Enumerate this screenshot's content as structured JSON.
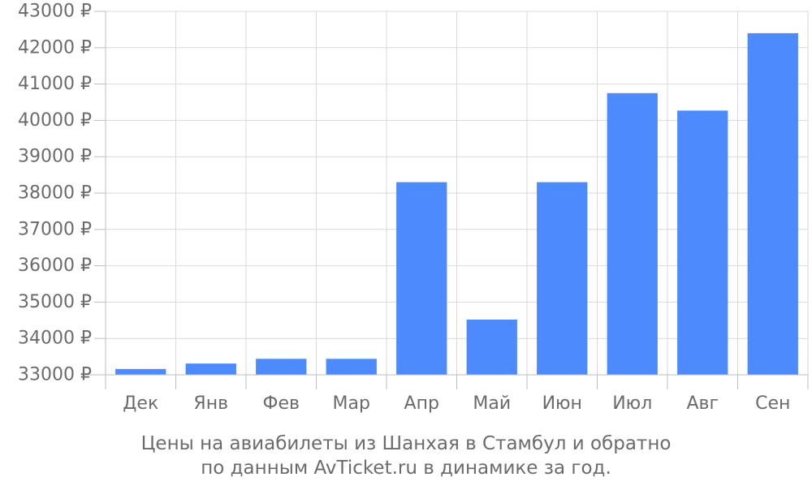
{
  "chart_data": {
    "type": "bar",
    "categories": [
      "Дек",
      "Янв",
      "Фев",
      "Мар",
      "Апр",
      "Май",
      "Июн",
      "Июл",
      "Авг",
      "Сен"
    ],
    "values": [
      33160,
      33310,
      33440,
      33440,
      38300,
      34520,
      38300,
      40750,
      40270,
      42400
    ],
    "ylim": [
      33000,
      43000
    ],
    "yticks": [
      33000,
      34000,
      35000,
      36000,
      37000,
      38000,
      39000,
      40000,
      41000,
      42000,
      43000
    ],
    "ytick_labels": [
      "33000 ₽",
      "34000 ₽",
      "35000 ₽",
      "36000 ₽",
      "37000 ₽",
      "38000 ₽",
      "39000 ₽",
      "40000 ₽",
      "41000 ₽",
      "42000 ₽",
      "43000 ₽"
    ],
    "bar_color": "#4d8afe",
    "grid": true,
    "caption_line1": "Цены на авиабилеты из Шанхая в Стамбул и обратно",
    "caption_line2": "по данным AvTicket.ru в динамике за год."
  }
}
